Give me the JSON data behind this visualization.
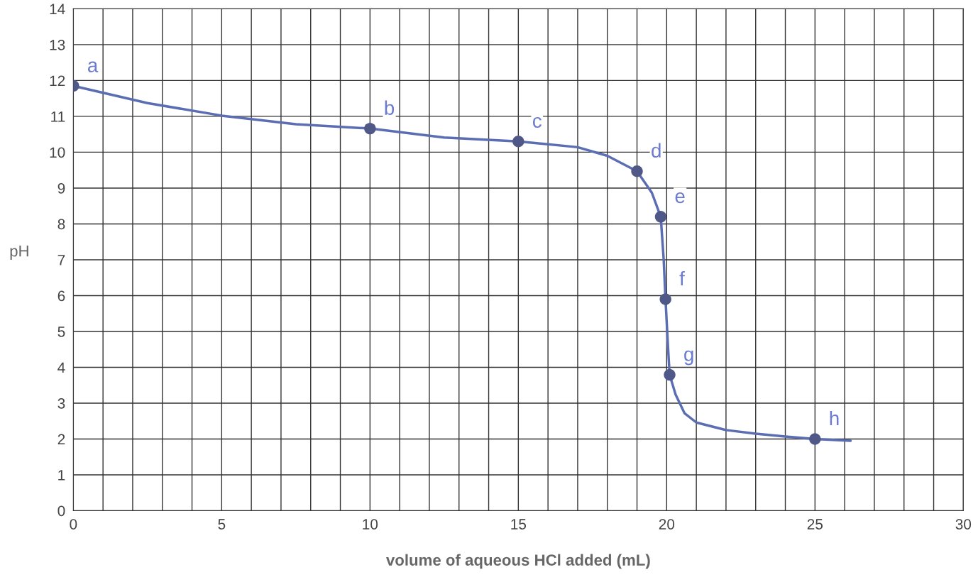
{
  "chart_data": {
    "type": "line",
    "xlabel": "volume of aqueous HCl added (mL)",
    "ylabel": "pH",
    "xlim": [
      0,
      30
    ],
    "ylim": [
      0,
      14
    ],
    "xticks": [
      0,
      {
        "value": 1,
        "label": null
      },
      {
        "value": 2,
        "label": null
      },
      {
        "value": 3,
        "label": null
      },
      {
        "value": 4,
        "label": null
      },
      5,
      {
        "value": 6,
        "label": null
      },
      {
        "value": 7,
        "label": null
      },
      {
        "value": 8,
        "label": null
      },
      {
        "value": 9,
        "label": null
      },
      10,
      {
        "value": 11,
        "label": null
      },
      {
        "value": 12,
        "label": null
      },
      {
        "value": 13,
        "label": null
      },
      {
        "value": 14,
        "label": null
      },
      15,
      {
        "value": 16,
        "label": null
      },
      {
        "value": 17,
        "label": null
      },
      {
        "value": 18,
        "label": null
      },
      {
        "value": 19,
        "label": null
      },
      20,
      {
        "value": 21,
        "label": null
      },
      {
        "value": 22,
        "label": null
      },
      {
        "value": 23,
        "label": null
      },
      {
        "value": 24,
        "label": null
      },
      25,
      {
        "value": 26,
        "label": null
      },
      {
        "value": 27,
        "label": null
      },
      {
        "value": 28,
        "label": null
      },
      {
        "value": 29,
        "label": null
      },
      30
    ],
    "yticks": [
      0,
      1,
      2,
      3,
      4,
      5,
      6,
      7,
      8,
      9,
      10,
      11,
      12,
      13,
      14
    ],
    "grid": true,
    "line_style": "solid",
    "series": [
      {
        "color": "#5b6db3",
        "marker": "none",
        "x": [
          0,
          2.5,
          5,
          7.5,
          10,
          12.5,
          15,
          17,
          18,
          19,
          19.5,
          19.8,
          19.9,
          19.96,
          20.05,
          20.1,
          20.3,
          20.6,
          21,
          22,
          23,
          24,
          25,
          26.2
        ],
        "values": [
          11.85,
          11.37,
          11.02,
          10.78,
          10.66,
          10.41,
          10.3,
          10.14,
          9.9,
          9.47,
          8.87,
          8.2,
          7.0,
          5.9,
          4.5,
          3.79,
          3.24,
          2.72,
          2.46,
          2.25,
          2.15,
          2.07,
          2.0,
          1.95
        ]
      },
      {
        "type": "scatter",
        "color": "#4f5887",
        "marker": "circle",
        "x": [
          0,
          10,
          15,
          19,
          19.8,
          19.96,
          20.1,
          25
        ],
        "values": [
          11.85,
          10.66,
          10.3,
          9.47,
          8.2,
          5.9,
          3.79,
          2.0
        ]
      }
    ],
    "annotations": [
      {
        "text": "a",
        "x": 0,
        "y": 11.85
      },
      {
        "text": "b",
        "x": 10,
        "y": 10.66
      },
      {
        "text": "c",
        "x": 15,
        "y": 10.3
      },
      {
        "text": "d",
        "x": 19,
        "y": 9.47
      },
      {
        "text": "e",
        "x": 19.8,
        "y": 8.2
      },
      {
        "text": "f",
        "x": 19.96,
        "y": 5.9
      },
      {
        "text": "g",
        "x": 20.1,
        "y": 3.79
      },
      {
        "text": "h",
        "x": 25,
        "y": 2.0
      }
    ]
  }
}
